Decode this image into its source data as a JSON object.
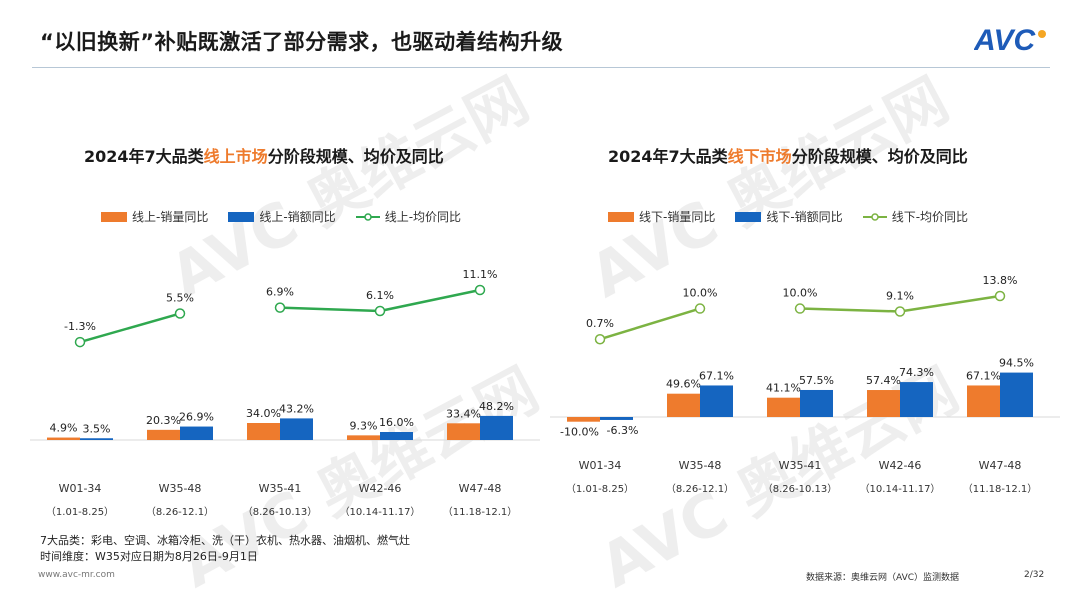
{
  "slide": {
    "title": "“以旧换新”补贴既激活了部分需求，也驱动着结构升级",
    "logo_text": "AVC",
    "watermark_text": "AVC 奥维云网",
    "notes": [
      "7大品类：彩电、空调、冰箱冷柜、洗（干）衣机、热水器、油烟机、燃气灶",
      "时间维度：W35对应日期为8月26日-9月1日"
    ],
    "footer_url": "www.avc-mr.com",
    "footer_source": "数据来源：奥维云网（AVC）监测数据",
    "page": "2/32"
  },
  "colors": {
    "orange": "#ee7b2d",
    "blue": "#1565c0",
    "green_online": "#2fa84f",
    "green_offline": "#7cb342"
  },
  "chart_data": [
    {
      "type": "bar",
      "title_parts": [
        "2024年7大品类",
        "线上市场",
        "分阶段规模、均价及同比"
      ],
      "categories": [
        "W01-34",
        "W35-48",
        "W35-41",
        "W42-46",
        "W47-48"
      ],
      "category_dates": [
        "（1.01-8.25）",
        "（8.26-12.1）",
        "（8.26-10.13）",
        "（10.14-11.17）",
        "（11.18-12.1）"
      ],
      "series": [
        {
          "name": "线上-销量同比",
          "kind": "bar",
          "values": [
            4.9,
            20.3,
            34.0,
            9.3,
            33.4
          ],
          "labels": [
            "4.9%",
            "20.3%",
            "34.0%",
            "9.3%",
            "33.4%"
          ]
        },
        {
          "name": "线上-销额同比",
          "kind": "bar",
          "values": [
            3.5,
            26.9,
            43.2,
            16.0,
            48.2
          ],
          "labels": [
            "3.5%",
            "26.9%",
            "43.2%",
            "16.0%",
            "48.2%"
          ]
        },
        {
          "name": "线上-均价同比",
          "kind": "line",
          "values": [
            -1.3,
            5.5,
            6.9,
            6.1,
            11.1
          ],
          "labels": [
            "-1.3%",
            "5.5%",
            "6.9%",
            "6.1%",
            "11.1%"
          ],
          "segments": [
            [
              0,
              1
            ],
            [
              2,
              3,
              4
            ]
          ]
        }
      ]
    },
    {
      "type": "bar",
      "title_parts": [
        "2024年7大品类",
        "线下市场",
        "分阶段规模、均价及同比"
      ],
      "categories": [
        "W01-34",
        "W35-48",
        "W35-41",
        "W42-46",
        "W47-48"
      ],
      "category_dates": [
        "（1.01-8.25）",
        "（8.26-12.1）",
        "（8.26-10.13）",
        "（10.14-11.17）",
        "（11.18-12.1）"
      ],
      "series": [
        {
          "name": "线下-销量同比",
          "kind": "bar",
          "values": [
            -10.0,
            49.6,
            41.1,
            57.4,
            67.1
          ],
          "labels": [
            "-10.0%",
            "49.6%",
            "41.1%",
            "57.4%",
            "67.1%"
          ]
        },
        {
          "name": "线下-销额同比",
          "kind": "bar",
          "values": [
            -6.3,
            67.1,
            57.5,
            74.3,
            94.5
          ],
          "labels": [
            "-6.3%",
            "67.1%",
            "57.5%",
            "74.3%",
            "94.5%"
          ]
        },
        {
          "name": "线下-均价同比",
          "kind": "line",
          "values": [
            0.7,
            10.0,
            10.0,
            9.1,
            13.8
          ],
          "labels": [
            "0.7%",
            "10.0%",
            "10.0%",
            "9.1%",
            "13.8%"
          ],
          "segments": [
            [
              0,
              1
            ],
            [
              2,
              3,
              4
            ]
          ]
        }
      ]
    }
  ]
}
